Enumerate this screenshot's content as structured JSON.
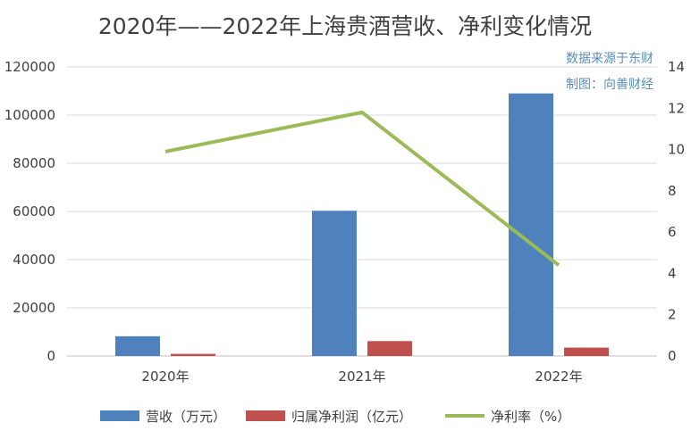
{
  "chart_data": {
    "type": "bar",
    "title": "2020年——2022年上海贵酒营收、净利变化情况",
    "categories": [
      "2020年",
      "2021年",
      "2022年"
    ],
    "series": [
      {
        "name": "营收（万元）",
        "type": "bar",
        "axis": "left",
        "color": "#4f81bd",
        "values": [
          8200,
          60300,
          109000
        ]
      },
      {
        "name": "归属净利润（亿元）",
        "type": "bar",
        "axis": "left",
        "color": "#c0504d",
        "values": [
          900,
          6200,
          3500
        ]
      },
      {
        "name": "净利率（%）",
        "type": "line",
        "axis": "right",
        "color": "#9bbb59",
        "values": [
          9.9,
          11.8,
          4.4
        ]
      }
    ],
    "y_left": {
      "min": 0,
      "max": 120000,
      "ticks": [
        "0",
        "20000",
        "40000",
        "60000",
        "80000",
        "100000",
        "120000"
      ]
    },
    "y_right": {
      "min": 0,
      "max": 14,
      "ticks": [
        "0",
        "2",
        "4",
        "6",
        "8",
        "10",
        "12",
        "14"
      ]
    },
    "grid": true,
    "legend_position": "bottom",
    "annotations": [
      "数据来源于东财",
      "制图：向善财经"
    ]
  }
}
